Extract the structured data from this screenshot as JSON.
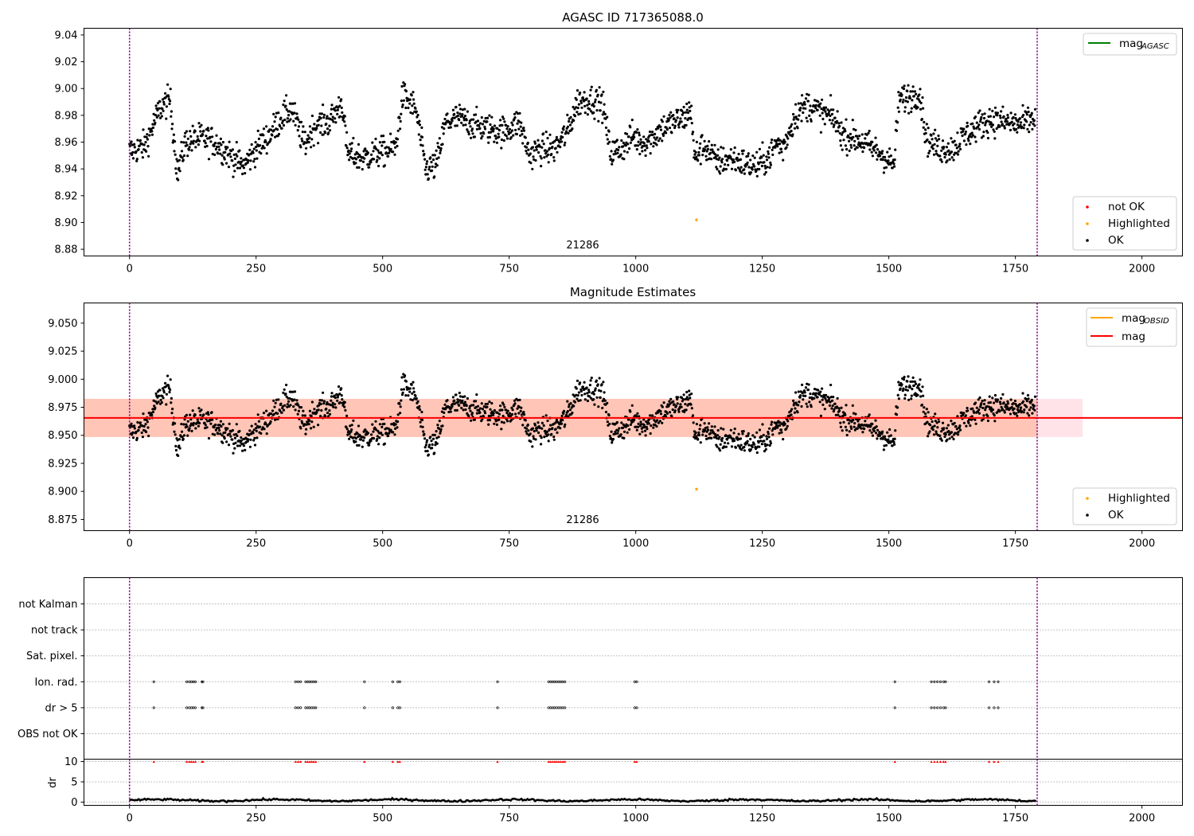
{
  "figure": {
    "panels": [
      {
        "title": "AGASC ID 717365088.0",
        "ylim": [
          8.875,
          9.045
        ],
        "yticks": [
          8.88,
          8.9,
          8.92,
          8.94,
          8.96,
          8.98,
          9.0,
          9.02,
          9.04
        ],
        "ytick_labels": [
          "8.88",
          "8.90",
          "8.92",
          "8.94",
          "8.96",
          "8.98",
          "9.00",
          "9.02",
          "9.04"
        ],
        "obsid_label": "21286",
        "line_legend": [
          {
            "label": "mag",
            "sub": "AGASC",
            "color": "#008000"
          }
        ],
        "point_legend": [
          {
            "label": "not OK",
            "color": "#ff0000"
          },
          {
            "label": "Highlighted",
            "color": "#ffa500"
          },
          {
            "label": "OK",
            "color": "#000000"
          }
        ]
      },
      {
        "title": "Magnitude Estimates",
        "ylim": [
          8.865,
          9.068
        ],
        "yticks": [
          8.875,
          8.9,
          8.925,
          8.95,
          8.975,
          9.0,
          9.025,
          9.05
        ],
        "ytick_labels": [
          "8.875",
          "8.900",
          "8.925",
          "8.950",
          "8.975",
          "9.000",
          "9.025",
          "9.050"
        ],
        "obsid_label": "21286",
        "mag_line": 8.9655,
        "band_total": [
          8.9485,
          8.9825
        ],
        "band_obsid_range_x": [
          -90,
          1793
        ],
        "band_total_range_x": [
          -90,
          1883
        ],
        "line_legend": [
          {
            "label": "mag",
            "sub": "OBSID",
            "color": "#ffa500"
          },
          {
            "label": "mag",
            "sub": "",
            "color": "#ff0000"
          }
        ],
        "point_legend": [
          {
            "label": "Highlighted",
            "color": "#ffa500"
          },
          {
            "label": "OK",
            "color": "#000000"
          }
        ]
      }
    ],
    "flags_panel": {
      "categories": [
        "not Kalman",
        "not track",
        "Sat. pixel.",
        "Ion. rad.",
        "dr > 5",
        "OBS not OK"
      ],
      "flag_x": [
        48,
        113,
        118,
        122,
        126,
        130,
        143,
        145,
        328,
        333,
        338,
        348,
        352,
        356,
        360,
        364,
        368,
        464,
        520,
        530,
        534,
        727,
        828,
        832,
        836,
        840,
        844,
        848,
        852,
        856,
        860,
        998,
        1002,
        1512,
        1584,
        1590,
        1596,
        1602,
        1608,
        1612,
        1698,
        1708,
        1716
      ]
    },
    "dr_panel": {
      "ylabel": "dr",
      "yticks": [
        0,
        5,
        10
      ],
      "ytick_labels": [
        "0",
        "5",
        "10"
      ],
      "ylim": [
        -0.8,
        10.6
      ]
    },
    "xaxis": {
      "xlim": [
        -90,
        2080
      ],
      "ticks": [
        0,
        250,
        500,
        750,
        1000,
        1250,
        1500,
        1750,
        2000
      ],
      "tick_labels": [
        "0",
        "250",
        "500",
        "750",
        "1000",
        "1250",
        "1500",
        "1750",
        "2000"
      ],
      "obs_boundaries": [
        0,
        1793
      ]
    },
    "colors": {
      "ok": "#000000",
      "highlighted": "#ffa500",
      "not_ok": "#ff0000",
      "boundary": "#800080",
      "mag_agasc": "#008000",
      "mag": "#ff0000",
      "band_obsid": "#ffa07a",
      "band_total": "#ffc0cb"
    }
  },
  "chart_data": [
    {
      "type": "scatter",
      "title": "AGASC ID 717365088.0",
      "xlabel": "",
      "ylabel": "",
      "xlim": [
        -90,
        2080
      ],
      "ylim": [
        8.875,
        9.045
      ],
      "grid": false,
      "legend": [
        "upper right: mag AGASC",
        "lower right: not OK, Highlighted, OK"
      ],
      "annotation": "21286",
      "series": [
        {
          "name": "OK",
          "color": "#000000",
          "x": [
            0,
            30,
            60,
            80,
            95,
            110,
            140,
            170,
            200,
            225,
            250,
            275,
            300,
            320,
            345,
            365,
            395,
            420,
            430,
            460,
            490,
            525,
            540,
            565,
            585,
            605,
            625,
            650,
            680,
            710,
            740,
            770,
            790,
            810,
            840,
            865,
            885,
            910,
            935,
            950,
            970,
            995,
            1010,
            1030,
            1050,
            1075,
            1095,
            1110,
            1115,
            1135,
            1160,
            1190,
            1215,
            1240,
            1265,
            1280,
            1290,
            1315,
            1340,
            1365,
            1390,
            1410,
            1440,
            1470,
            1495,
            1510,
            1520,
            1545,
            1560,
            1575,
            1600,
            1625,
            1650,
            1675,
            1700,
            1730,
            1760,
            1790
          ],
          "y": [
            8.953,
            8.957,
            8.985,
            8.992,
            8.936,
            8.96,
            8.963,
            8.96,
            8.95,
            8.942,
            8.955,
            8.965,
            8.978,
            8.985,
            8.958,
            8.972,
            8.975,
            8.99,
            8.952,
            8.948,
            8.952,
            8.955,
            8.995,
            8.985,
            8.94,
            8.942,
            8.975,
            8.978,
            8.973,
            8.97,
            8.968,
            8.975,
            8.95,
            8.955,
            8.955,
            8.968,
            8.99,
            8.992,
            8.988,
            8.952,
            8.955,
            8.965,
            8.96,
            8.962,
            8.97,
            8.975,
            8.978,
            8.985,
            8.948,
            8.958,
            8.945,
            8.948,
            8.944,
            8.942,
            8.95,
            8.96,
            8.955,
            8.98,
            8.988,
            8.982,
            8.978,
            8.965,
            8.962,
            8.955,
            8.948,
            8.942,
            8.992,
            8.994,
            8.998,
            8.962,
            8.955,
            8.955,
            8.965,
            8.972,
            8.977,
            8.975,
            8.973,
            8.978
          ]
        },
        {
          "name": "Highlighted",
          "color": "#ffa500",
          "x": [
            1120
          ],
          "y": [
            8.902
          ]
        },
        {
          "name": "not OK",
          "color": "#ff0000",
          "x": [],
          "y": []
        }
      ],
      "lines": [
        {
          "name": "mag AGASC",
          "color": "#008000",
          "x": [],
          "y": []
        }
      ],
      "vlines": [
        0,
        1793
      ]
    },
    {
      "type": "scatter",
      "title": "Magnitude Estimates",
      "xlabel": "",
      "ylabel": "",
      "xlim": [
        -90,
        2080
      ],
      "ylim": [
        8.865,
        9.068
      ],
      "grid": false,
      "legend": [
        "upper right: mag OBSID, mag",
        "lower right: Highlighted, OK"
      ],
      "annotation": "21286",
      "series": [
        {
          "name": "OK",
          "color": "#000000",
          "same_as_panel": 1
        },
        {
          "name": "Highlighted",
          "color": "#ffa500",
          "x": [
            1120
          ],
          "y": [
            8.902
          ]
        }
      ],
      "lines": [
        {
          "name": "mag",
          "color": "#ff0000",
          "y": 8.9655
        },
        {
          "name": "mag OBSID",
          "color": "#ffa500",
          "y": 8.9655
        }
      ],
      "bands": [
        {
          "color": "#ffa07a",
          "y": [
            8.9485,
            8.9825
          ],
          "x": [
            -90,
            1793
          ]
        },
        {
          "color": "#ffc0cb",
          "y": [
            8.9485,
            8.9825
          ],
          "x": [
            -90,
            1883
          ]
        }
      ],
      "vlines": [
        0,
        1793
      ]
    },
    {
      "type": "scatter",
      "title": "",
      "categories": [
        "not Kalman",
        "not track",
        "Sat. pixel.",
        "Ion. rad.",
        "dr > 5",
        "OBS not OK"
      ],
      "series": [
        {
          "name": "Ion. rad.",
          "x": [
            48,
            113,
            118,
            122,
            126,
            130,
            143,
            145,
            328,
            333,
            338,
            348,
            352,
            356,
            360,
            364,
            368,
            464,
            520,
            530,
            534,
            727,
            828,
            832,
            836,
            840,
            844,
            848,
            852,
            856,
            860,
            998,
            1002,
            1512,
            1584,
            1590,
            1596,
            1602,
            1608,
            1612,
            1698,
            1708,
            1716
          ]
        },
        {
          "name": "dr > 5",
          "x": [
            48,
            113,
            118,
            122,
            126,
            130,
            143,
            145,
            328,
            333,
            338,
            348,
            352,
            356,
            360,
            364,
            368,
            464,
            520,
            530,
            534,
            727,
            828,
            832,
            836,
            840,
            844,
            848,
            852,
            856,
            860,
            998,
            1002,
            1512,
            1584,
            1590,
            1596,
            1602,
            1608,
            1612,
            1698,
            1708,
            1716
          ]
        }
      ],
      "xlim": [
        -90,
        2080
      ],
      "vlines": [
        0,
        1793
      ]
    },
    {
      "type": "line",
      "title": "",
      "ylabel": "dr",
      "ylim": [
        -0.8,
        10.6
      ],
      "series": [
        {
          "name": "dr",
          "color": "#000000",
          "x": [
            0,
            250,
            500,
            750,
            1000,
            1250,
            1500,
            1793
          ],
          "y": [
            0.5,
            0.4,
            0.6,
            0.5,
            0.6,
            0.5,
            0.6,
            0.5
          ]
        },
        {
          "name": "dr>10 markers",
          "color": "#ff0000",
          "x": [
            48,
            113,
            118,
            122,
            126,
            130,
            143,
            145,
            328,
            333,
            338,
            348,
            352,
            356,
            360,
            364,
            368,
            464,
            520,
            530,
            534,
            727,
            828,
            832,
            836,
            840,
            844,
            848,
            852,
            856,
            860,
            998,
            1002,
            1512,
            1584,
            1590,
            1596,
            1602,
            1608,
            1612,
            1698,
            1708,
            1716
          ],
          "y": 10
        }
      ],
      "xlim": [
        -90,
        2080
      ],
      "vlines": [
        0,
        1793
      ]
    }
  ]
}
